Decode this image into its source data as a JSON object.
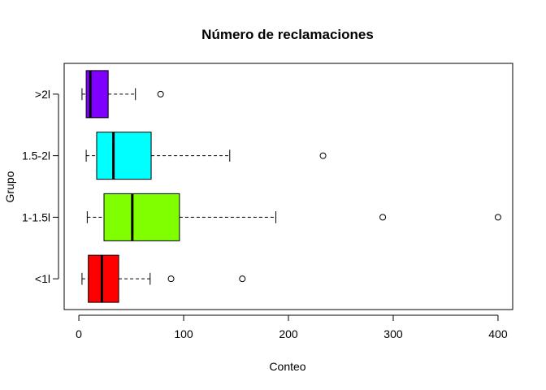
{
  "chart_data": {
    "type": "boxplot",
    "orientation": "horizontal",
    "title": "Número de reclamaciones",
    "xlabel": "Conteo",
    "ylabel": "Grupo",
    "xlim": [
      -14,
      414
    ],
    "xticks": [
      0,
      100,
      200,
      300,
      400
    ],
    "grid": false,
    "legend": "none",
    "groups": [
      {
        "label": "<1l",
        "color": "#ff0000",
        "min": 3,
        "q1": 9,
        "median": 22,
        "q3": 38,
        "max": 68,
        "outliers": [
          88,
          156
        ]
      },
      {
        "label": "1-1.5l",
        "color": "#80ff00",
        "min": 8,
        "q1": 24,
        "median": 51,
        "q3": 96,
        "max": 188,
        "outliers": [
          290,
          400
        ]
      },
      {
        "label": "1.5-2l",
        "color": "#00ffff",
        "min": 7,
        "q1": 17,
        "median": 33,
        "q3": 69,
        "max": 144,
        "outliers": [
          233
        ]
      },
      {
        "label": ">2l",
        "color": "#8000ff",
        "min": 3,
        "q1": 7,
        "median": 11,
        "q3": 28,
        "max": 54,
        "outliers": [
          78
        ]
      }
    ]
  }
}
